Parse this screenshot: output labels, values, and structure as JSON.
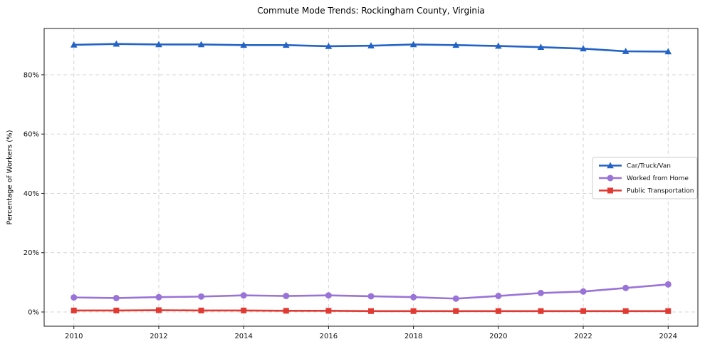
{
  "chart_data": {
    "type": "line",
    "title": "Commute Mode Trends: Rockingham County, Virginia",
    "xlabel": "",
    "ylabel": "Percentage of Workers (%)",
    "x": [
      2010,
      2011,
      2012,
      2013,
      2014,
      2015,
      2016,
      2017,
      2018,
      2019,
      2020,
      2021,
      2022,
      2023,
      2024
    ],
    "x_ticks": [
      2010,
      2012,
      2014,
      2016,
      2018,
      2020,
      2022,
      2024
    ],
    "y_ticks": [
      0,
      20,
      40,
      60,
      80
    ],
    "y_tick_suffix": "%",
    "xlim": [
      2009.3,
      2024.7
    ],
    "ylim": [
      -4.8,
      95.6
    ],
    "grid": true,
    "grid_style": "dashed",
    "legend_position": "center-right",
    "series": [
      {
        "name": "Car/Truck/Van",
        "color": "#2363c6",
        "marker": "triangle",
        "values": [
          90.1,
          90.4,
          90.2,
          90.2,
          90.0,
          90.0,
          89.6,
          89.8,
          90.2,
          90.0,
          89.7,
          89.3,
          88.8,
          87.9,
          87.8
        ]
      },
      {
        "name": "Worked from Home",
        "color": "#9a73d8",
        "marker": "circle",
        "values": [
          4.9,
          4.7,
          5.0,
          5.2,
          5.6,
          5.4,
          5.6,
          5.3,
          5.0,
          4.5,
          5.4,
          6.4,
          6.9,
          8.1,
          9.3
        ]
      },
      {
        "name": "Public Transportation",
        "color": "#e03a32",
        "marker": "square",
        "values": [
          0.5,
          0.5,
          0.6,
          0.5,
          0.5,
          0.4,
          0.4,
          0.3,
          0.3,
          0.3,
          0.3,
          0.3,
          0.3,
          0.3,
          0.3
        ]
      }
    ],
    "colors": {
      "grid": "#d5d5d5",
      "spine": "#1a1a1a",
      "background": "#ffffff",
      "legend_border": "#cccccc"
    }
  }
}
